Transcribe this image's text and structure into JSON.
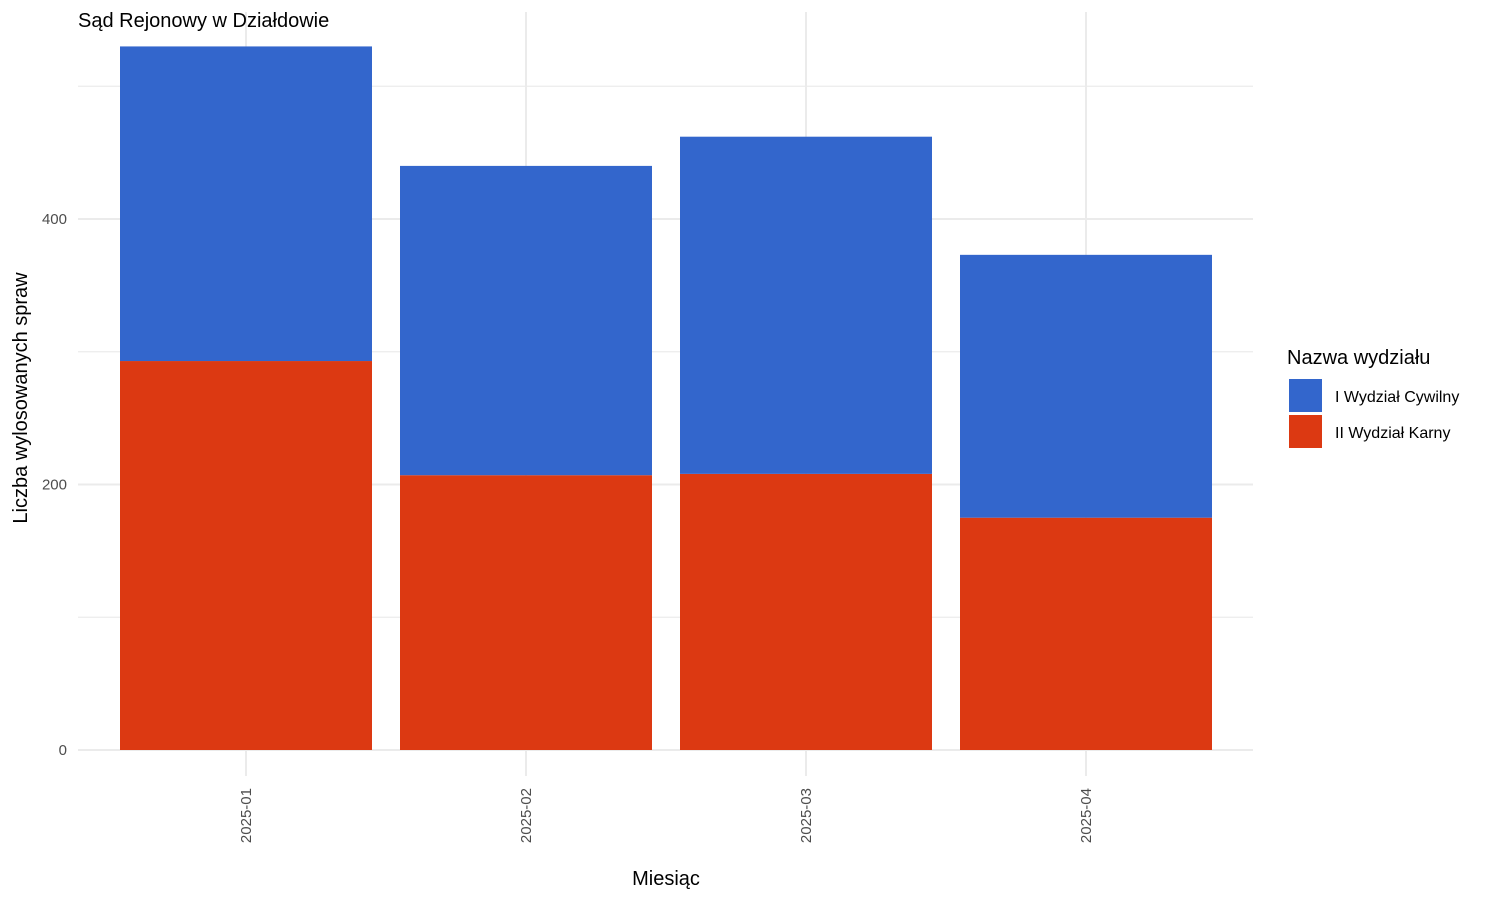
{
  "chart_data": {
    "type": "bar",
    "stacked": true,
    "title": "Sąd Rejonowy w Działdowie",
    "xlabel": "Miesiąc",
    "ylabel": "Liczba wylosowanych spraw",
    "categories": [
      "2025-01",
      "2025-02",
      "2025-03",
      "2025-04"
    ],
    "series": [
      {
        "name": "II Wydział Karny",
        "color": "#DC3912",
        "values": [
          293,
          207,
          208,
          175
        ]
      },
      {
        "name": "I Wydział Cywilny",
        "color": "#3366CC",
        "values": [
          237,
          233,
          254,
          198
        ]
      }
    ],
    "ylim": [
      0,
      530
    ],
    "yticks": [
      0,
      200,
      400
    ],
    "yticks_minor": [
      100,
      300,
      500
    ],
    "grid": true,
    "legend": {
      "title": "Nazwa wydziału",
      "position": "right",
      "order": [
        "I Wydział Cywilny",
        "II Wydział Karny"
      ]
    },
    "x_tick_rotation": -90
  }
}
